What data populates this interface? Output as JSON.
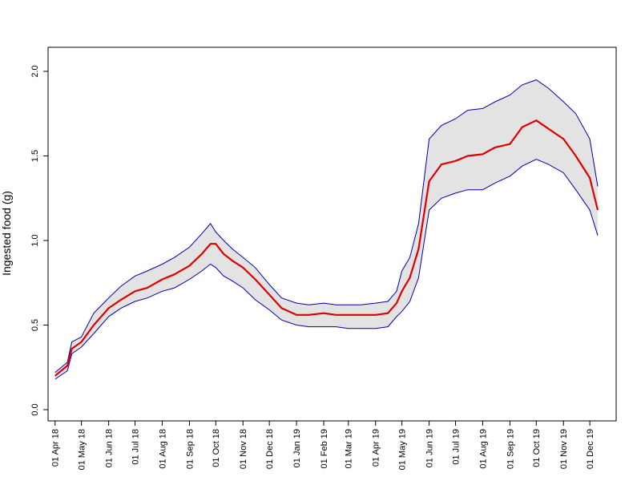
{
  "chart_data": {
    "type": "line",
    "title": "",
    "xlabel": "",
    "ylabel": "Ingested food (g)",
    "ylim": [
      0,
      2.0
    ],
    "yticks": [
      0.0,
      0.5,
      1.0,
      1.5,
      2.0
    ],
    "ytick_labels": [
      "0.0",
      "0.5",
      "1.0",
      "1.5",
      "2.0"
    ],
    "xlim": [
      "2018-03-24",
      "2019-12-31"
    ],
    "xtick_dates": [
      "2018-04-01",
      "2018-05-01",
      "2018-06-01",
      "2018-07-01",
      "2018-08-01",
      "2018-09-01",
      "2018-10-01",
      "2018-11-01",
      "2018-12-01",
      "2019-01-01",
      "2019-02-01",
      "2019-03-01",
      "2019-04-01",
      "2019-05-01",
      "2019-06-01",
      "2019-07-01",
      "2019-08-01",
      "2019-09-01",
      "2019-10-01",
      "2019-11-01",
      "2019-12-01"
    ],
    "xtick_labels": [
      "01 Apr 18",
      "01 May 18",
      "01 Jun 18",
      "01 Jul 18",
      "01 Aug 18",
      "01 Sep 18",
      "01 Oct 18",
      "01 Nov 18",
      "01 Dec 18",
      "01 Jan 19",
      "01 Feb 19",
      "01 Mar 19",
      "01 Apr 19",
      "01 May 19",
      "01 Jun 19",
      "01 Jul 19",
      "01 Aug 19",
      "01 Sep 19",
      "01 Oct 19",
      "01 Nov 19",
      "01 Dec 19"
    ],
    "grid": false,
    "legend": "none",
    "colors": {
      "mean": "#dd0000",
      "bounds": "#0000aa",
      "band": "#e3e3e3"
    },
    "series": [
      {
        "role": "mean",
        "x": [
          "2018-04-01",
          "2018-04-15",
          "2018-04-20",
          "2018-05-01",
          "2018-05-15",
          "2018-06-01",
          "2018-06-15",
          "2018-07-01",
          "2018-07-15",
          "2018-08-01",
          "2018-08-15",
          "2018-09-01",
          "2018-09-15",
          "2018-09-25",
          "2018-10-01",
          "2018-10-10",
          "2018-10-20",
          "2018-11-01",
          "2018-11-15",
          "2018-12-01",
          "2018-12-15",
          "2019-01-01",
          "2019-01-15",
          "2019-02-01",
          "2019-02-15",
          "2019-03-01",
          "2019-03-15",
          "2019-04-01",
          "2019-04-15",
          "2019-04-25",
          "2019-05-01",
          "2019-05-10",
          "2019-05-20",
          "2019-06-01",
          "2019-06-15",
          "2019-07-01",
          "2019-07-15",
          "2019-08-01",
          "2019-08-15",
          "2019-09-01",
          "2019-09-15",
          "2019-10-01",
          "2019-10-15",
          "2019-11-01",
          "2019-11-15",
          "2019-12-01",
          "2019-12-10"
        ],
        "y": [
          0.2,
          0.26,
          0.36,
          0.4,
          0.5,
          0.6,
          0.65,
          0.7,
          0.72,
          0.77,
          0.8,
          0.85,
          0.92,
          0.98,
          0.98,
          0.92,
          0.88,
          0.84,
          0.77,
          0.68,
          0.6,
          0.56,
          0.56,
          0.57,
          0.56,
          0.56,
          0.56,
          0.56,
          0.57,
          0.63,
          0.7,
          0.78,
          0.95,
          1.35,
          1.45,
          1.47,
          1.5,
          1.51,
          1.55,
          1.57,
          1.67,
          1.71,
          1.66,
          1.6,
          1.5,
          1.37,
          1.18
        ]
      },
      {
        "role": "upper",
        "x": [
          "2018-04-01",
          "2018-04-15",
          "2018-04-20",
          "2018-05-01",
          "2018-05-15",
          "2018-06-01",
          "2018-06-15",
          "2018-07-01",
          "2018-07-15",
          "2018-08-01",
          "2018-08-15",
          "2018-09-01",
          "2018-09-15",
          "2018-09-25",
          "2018-10-01",
          "2018-10-10",
          "2018-10-20",
          "2018-11-01",
          "2018-11-15",
          "2018-12-01",
          "2018-12-15",
          "2019-01-01",
          "2019-01-15",
          "2019-02-01",
          "2019-02-15",
          "2019-03-01",
          "2019-03-15",
          "2019-04-01",
          "2019-04-15",
          "2019-04-25",
          "2019-05-01",
          "2019-05-10",
          "2019-05-20",
          "2019-06-01",
          "2019-06-15",
          "2019-07-01",
          "2019-07-15",
          "2019-08-01",
          "2019-08-15",
          "2019-09-01",
          "2019-09-15",
          "2019-10-01",
          "2019-10-15",
          "2019-11-01",
          "2019-11-15",
          "2019-12-01",
          "2019-12-10"
        ],
        "y": [
          0.22,
          0.28,
          0.4,
          0.43,
          0.57,
          0.66,
          0.73,
          0.79,
          0.82,
          0.86,
          0.9,
          0.96,
          1.04,
          1.1,
          1.05,
          1.0,
          0.95,
          0.9,
          0.84,
          0.74,
          0.66,
          0.63,
          0.62,
          0.63,
          0.62,
          0.62,
          0.62,
          0.63,
          0.64,
          0.7,
          0.82,
          0.9,
          1.1,
          1.6,
          1.68,
          1.72,
          1.77,
          1.78,
          1.82,
          1.86,
          1.92,
          1.95,
          1.9,
          1.82,
          1.75,
          1.6,
          1.32
        ]
      },
      {
        "role": "lower",
        "x": [
          "2018-04-01",
          "2018-04-15",
          "2018-04-20",
          "2018-05-01",
          "2018-05-15",
          "2018-06-01",
          "2018-06-15",
          "2018-07-01",
          "2018-07-15",
          "2018-08-01",
          "2018-08-15",
          "2018-09-01",
          "2018-09-15",
          "2018-09-25",
          "2018-10-01",
          "2018-10-10",
          "2018-10-20",
          "2018-11-01",
          "2018-11-15",
          "2018-12-01",
          "2018-12-15",
          "2019-01-01",
          "2019-01-15",
          "2019-02-01",
          "2019-02-15",
          "2019-03-01",
          "2019-03-15",
          "2019-04-01",
          "2019-04-15",
          "2019-04-25",
          "2019-05-01",
          "2019-05-10",
          "2019-05-20",
          "2019-06-01",
          "2019-06-15",
          "2019-07-01",
          "2019-07-15",
          "2019-08-01",
          "2019-08-15",
          "2019-09-01",
          "2019-09-15",
          "2019-10-01",
          "2019-10-15",
          "2019-11-01",
          "2019-11-15",
          "2019-12-01",
          "2019-12-10"
        ],
        "y": [
          0.18,
          0.23,
          0.33,
          0.37,
          0.45,
          0.55,
          0.6,
          0.64,
          0.66,
          0.7,
          0.72,
          0.77,
          0.82,
          0.86,
          0.84,
          0.79,
          0.76,
          0.72,
          0.65,
          0.59,
          0.53,
          0.5,
          0.49,
          0.49,
          0.49,
          0.48,
          0.48,
          0.48,
          0.49,
          0.55,
          0.58,
          0.64,
          0.78,
          1.18,
          1.25,
          1.28,
          1.3,
          1.3,
          1.34,
          1.38,
          1.44,
          1.48,
          1.45,
          1.4,
          1.3,
          1.18,
          1.03
        ]
      }
    ]
  }
}
